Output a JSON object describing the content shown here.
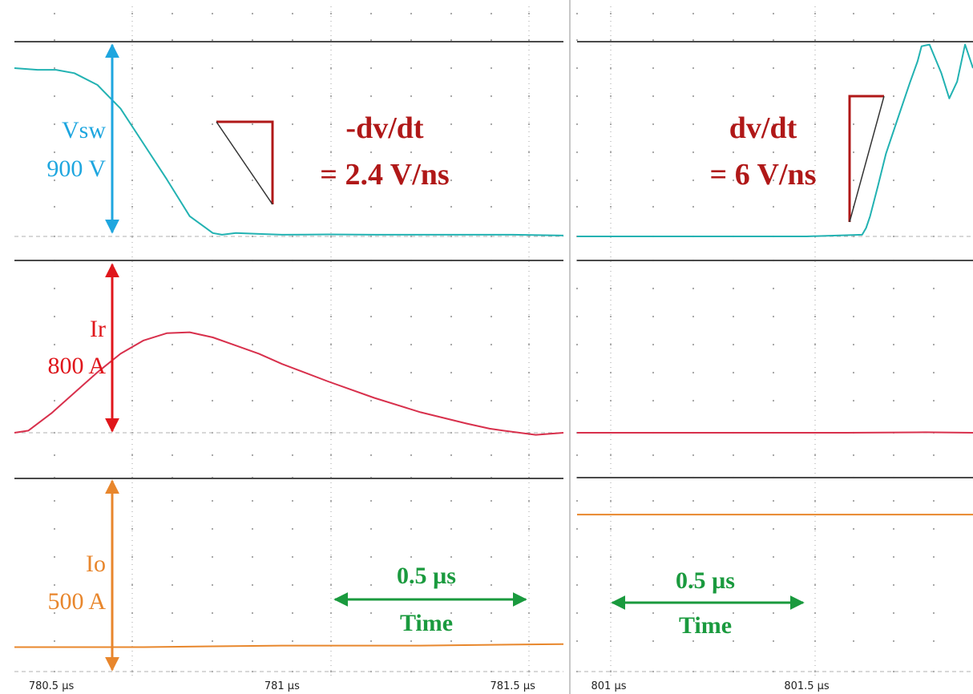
{
  "colors": {
    "vsw": "#22b2b2",
    "ir": "#d8304c",
    "io": "#e8872c",
    "ann_red": "#b01818",
    "time_green": "#1a9a3e",
    "vsw_label": "#1ea6df",
    "ir_label": "#e0161b",
    "io_label": "#e8862c",
    "grid_dot": "#a0a0a0",
    "divider": "#4a4a4a"
  },
  "left_panel": {
    "annotation_line1": "-dv/dt",
    "annotation_line2": "= 2.4 V/ns",
    "time_scale_value": "0.5 µs",
    "time_scale_label": "Time",
    "vsw_label": {
      "name": "Vsw",
      "value": "900 V"
    },
    "ir_label": {
      "name": "Ir",
      "value": "800 A"
    },
    "io_label": {
      "name": "Io",
      "value": "500 A"
    }
  },
  "right_panel": {
    "annotation_line1": "dv/dt",
    "annotation_line2": "= 6 V/ns",
    "time_scale_value": "0.5 µs",
    "time_scale_label": "Time"
  },
  "chart_data": [
    {
      "type": "line",
      "panel": "left",
      "xlim": [
        780.42,
        781.61
      ],
      "ticks": [
        {
          "x": 780.5,
          "label": "780.5 µs"
        },
        {
          "x": 781.0,
          "label": "781 µs"
        },
        {
          "x": 781.5,
          "label": "781.5 µs"
        }
      ],
      "series": [
        {
          "name": "Vsw",
          "channel": "vsw",
          "scale_text": "900 V",
          "x": [
            780.42,
            780.47,
            780.51,
            780.55,
            780.6,
            780.65,
            780.7,
            780.75,
            780.8,
            780.85,
            780.87,
            780.9,
            780.95,
            781.0,
            781.1,
            781.2,
            781.3,
            781.4,
            781.5,
            781.61
          ],
          "y": [
            1.0,
            0.99,
            0.99,
            0.97,
            0.9,
            0.76,
            0.55,
            0.34,
            0.12,
            0.02,
            0.01,
            0.02,
            0.015,
            0.01,
            0.012,
            0.01,
            0.01,
            0.01,
            0.01,
            0.005
          ]
        },
        {
          "name": "Ir",
          "channel": "ir",
          "scale_text": "800 A",
          "x": [
            780.42,
            780.45,
            780.5,
            780.55,
            780.6,
            780.65,
            780.7,
            780.75,
            780.8,
            780.85,
            780.9,
            780.95,
            781.0,
            781.1,
            781.2,
            781.3,
            781.4,
            781.45,
            781.48,
            781.55,
            781.61
          ],
          "y": [
            0.0,
            0.02,
            0.19,
            0.39,
            0.59,
            0.77,
            0.9,
            0.97,
            0.98,
            0.93,
            0.85,
            0.77,
            0.67,
            0.5,
            0.34,
            0.2,
            0.09,
            0.04,
            0.02,
            -0.02,
            0.0
          ]
        },
        {
          "name": "Io",
          "channel": "io",
          "scale_text": "500 A",
          "x": [
            780.42,
            780.7,
            781.0,
            781.3,
            781.61
          ],
          "y": [
            0.61,
            0.61,
            0.615,
            0.615,
            0.62
          ]
        }
      ]
    },
    {
      "type": "line",
      "panel": "right",
      "xlim": [
        800.92,
        801.92
      ],
      "ticks": [
        {
          "x": 801.0,
          "label": "801 µs"
        },
        {
          "x": 801.5,
          "label": "801.5 µs"
        }
      ],
      "series": [
        {
          "name": "Vsw",
          "channel": "vsw",
          "x": [
            800.92,
            801.2,
            801.5,
            801.64,
            801.65,
            801.66,
            801.68,
            801.7,
            801.73,
            801.76,
            801.78,
            801.79,
            801.81,
            801.84,
            801.86,
            801.88,
            801.9,
            801.92
          ],
          "y": [
            0.0,
            0.0,
            0.0,
            0.01,
            0.05,
            0.12,
            0.3,
            0.49,
            0.7,
            0.91,
            1.04,
            1.13,
            1.14,
            0.97,
            0.82,
            0.92,
            1.14,
            1.0
          ]
        },
        {
          "name": "Ir",
          "channel": "ir",
          "x": [
            800.92,
            801.3,
            801.6,
            801.8,
            801.92
          ],
          "y": [
            0.0,
            0.0,
            0.0,
            0.005,
            0.0
          ]
        },
        {
          "name": "Io",
          "channel": "io",
          "x": [
            800.92,
            801.2,
            801.5,
            801.92
          ],
          "y": [
            0.12,
            0.12,
            0.12,
            0.12
          ]
        }
      ]
    }
  ]
}
